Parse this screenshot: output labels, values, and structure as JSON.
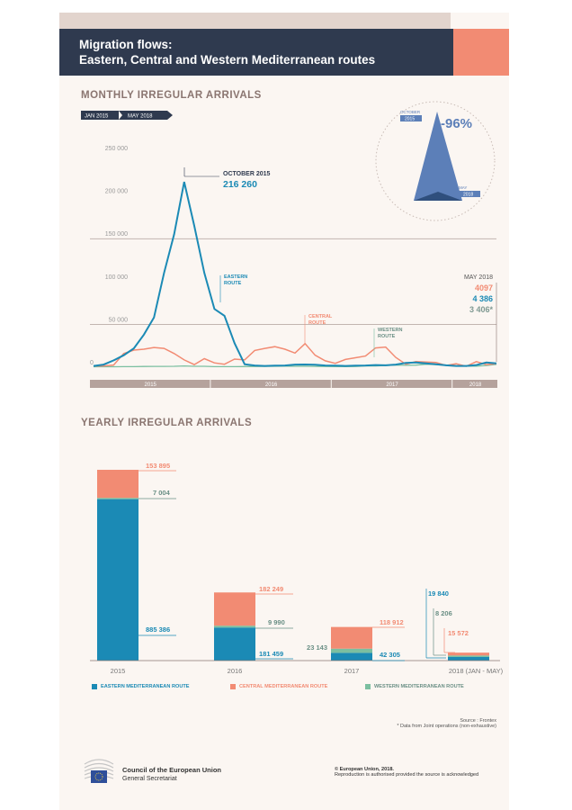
{
  "header": {
    "line1": "Migration flows:",
    "line2": "Eastern, Central and Western Mediterranean routes"
  },
  "monthly": {
    "section_title": "MONTHLY IRREGULAR ARRIVALS",
    "range_start": "JAN 2015",
    "range_end": "MAY 2018",
    "inset": {
      "label_top": "OCTOBER",
      "year_top": "2015",
      "percent": "-96%",
      "label_bottom": "MAY",
      "year_bottom": "2018"
    },
    "peak_label": "OCTOBER 2015",
    "peak_value": "216 260",
    "may_label": "MAY 2018",
    "may_central": "4097",
    "may_eastern": "4 386",
    "may_western": "3 406*",
    "route_labels": {
      "eastern": [
        "EASTERN",
        "ROUTE"
      ],
      "central": [
        "CENTRAL",
        "ROUTE"
      ],
      "western": [
        "WESTERN",
        "ROUTE"
      ]
    },
    "years": [
      "2015",
      "2016",
      "2017",
      "2018"
    ]
  },
  "yearly": {
    "section_title": "YEARLY IRREGULAR ARRIVALS",
    "labels": {
      "2015": {
        "central": "153 895",
        "western": "7 004",
        "eastern": "885 386"
      },
      "2016": {
        "central": "182 249",
        "western": "9 990",
        "eastern": "181 459"
      },
      "2017": {
        "central": "118 912",
        "western": "23 143",
        "eastern": "42 305"
      },
      "2018": {
        "central": "15 572",
        "western": "8 206",
        "eastern": "19 840"
      }
    }
  },
  "legend": {
    "eastern": "EASTERN MEDITERRANEAN ROUTE",
    "central": "CENTRAL MEDITERRANEAN ROUTE",
    "western": "WESTERN MEDITERRANEAN ROUTE"
  },
  "colors": {
    "eastern": "#1b8ab5",
    "central": "#f28b73",
    "western": "#7bbfa0",
    "dark": "#2f3a4f",
    "muted": "#b5a29c"
  },
  "source": {
    "line1": "Source : Frontex",
    "line2": "* Data from Joint operations (non-exhaustive)"
  },
  "footer": {
    "org1": "Council of the European Union",
    "org2": "General Secretariat",
    "copyright1": "© European Union, 2018.",
    "copyright2": "Reproduction is authorised provided the source is acknowledged"
  },
  "chart_data": [
    {
      "type": "line",
      "yticks": [
        "250 000",
        "200 000",
        "150 000",
        "100 000",
        "50 000",
        "0"
      ],
      "ylim": [
        0,
        250000
      ],
      "x_start": "2015-01",
      "x_end": "2018-05",
      "x": [
        "2015-01",
        "2015-02",
        "2015-03",
        "2015-04",
        "2015-05",
        "2015-06",
        "2015-07",
        "2015-08",
        "2015-09",
        "2015-10",
        "2015-11",
        "2015-12",
        "2016-01",
        "2016-02",
        "2016-03",
        "2016-04",
        "2016-05",
        "2016-06",
        "2016-07",
        "2016-08",
        "2016-09",
        "2016-10",
        "2016-11",
        "2016-12",
        "2017-01",
        "2017-02",
        "2017-03",
        "2017-04",
        "2017-05",
        "2017-06",
        "2017-07",
        "2017-08",
        "2017-09",
        "2017-10",
        "2017-11",
        "2017-12",
        "2018-01",
        "2018-02",
        "2018-03",
        "2018-04",
        "2018-05"
      ],
      "series": [
        {
          "name": "EASTERN",
          "values": [
            1500,
            3000,
            8000,
            14000,
            22000,
            38000,
            58000,
            110000,
            155000,
            216260,
            165000,
            110000,
            68000,
            60000,
            28000,
            3500,
            2000,
            1500,
            1800,
            2000,
            3000,
            3200,
            2800,
            2000,
            1800,
            1500,
            1800,
            2000,
            2500,
            2200,
            3000,
            5000,
            5500,
            4500,
            3500,
            2200,
            1500,
            1500,
            2500,
            5500,
            4386
          ]
        },
        {
          "name": "CENTRAL",
          "values": [
            1500,
            1500,
            2500,
            16000,
            20000,
            21000,
            23000,
            22000,
            16000,
            8500,
            3000,
            10000,
            5000,
            3500,
            9500,
            8500,
            19500,
            22000,
            24000,
            21000,
            16500,
            27500,
            14000,
            7500,
            4500,
            9000,
            11000,
            13000,
            22500,
            23500,
            11500,
            3500,
            6500,
            6000,
            5500,
            2000,
            4000,
            1000,
            6500,
            3000,
            4097
          ]
        },
        {
          "name": "WESTERN",
          "values": [
            500,
            500,
            500,
            600,
            600,
            800,
            900,
            900,
            1000,
            1500,
            1000,
            1000,
            600,
            600,
            600,
            700,
            800,
            900,
            1000,
            1200,
            1100,
            1000,
            900,
            800,
            700,
            700,
            800,
            1500,
            1500,
            2000,
            2500,
            2200,
            2400,
            3500,
            3000,
            2200,
            1400,
            1300,
            1200,
            2000,
            3406
          ]
        }
      ]
    },
    {
      "type": "bar",
      "categories": [
        "2015",
        "2016",
        "2017",
        "2018 (JAN - MAY)"
      ],
      "series": [
        {
          "name": "EASTERN MEDITERRANEAN ROUTE",
          "values": [
            885386,
            181459,
            42305,
            19840
          ]
        },
        {
          "name": "CENTRAL MEDITERRANEAN ROUTE",
          "values": [
            153895,
            182249,
            118912,
            15572
          ]
        },
        {
          "name": "WESTERN MEDITERRANEAN ROUTE",
          "values": [
            7004,
            9990,
            23143,
            8206
          ]
        }
      ]
    }
  ]
}
